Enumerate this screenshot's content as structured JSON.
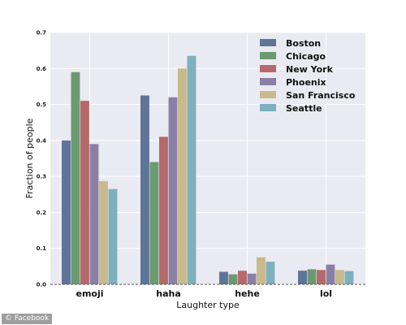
{
  "chart_data": {
    "type": "bar",
    "title": "",
    "xlabel": "Laughter type",
    "ylabel": "Fraction of people",
    "categories": [
      "emoji",
      "haha",
      "hehe",
      "lol"
    ],
    "ylim": [
      0,
      0.7
    ],
    "yticks": [
      "0.0",
      "0.1",
      "0.2",
      "0.3",
      "0.4",
      "0.5",
      "0.6",
      "0.7"
    ],
    "grid": true,
    "legend_position": "top-right",
    "series": [
      {
        "name": "Boston",
        "color": "#5f7499",
        "values": [
          0.4,
          0.525,
          0.035,
          0.038
        ]
      },
      {
        "name": "Chicago",
        "color": "#6b9a71",
        "values": [
          0.59,
          0.34,
          0.028,
          0.042
        ]
      },
      {
        "name": "New York",
        "color": "#b6696a",
        "values": [
          0.51,
          0.41,
          0.038,
          0.04
        ]
      },
      {
        "name": "Phoenix",
        "color": "#8a80a6",
        "values": [
          0.39,
          0.52,
          0.03,
          0.055
        ]
      },
      {
        "name": "San Francisco",
        "color": "#c8ba8a",
        "values": [
          0.287,
          0.6,
          0.075,
          0.04
        ]
      },
      {
        "name": "Seattle",
        "color": "#7eb0bd",
        "values": [
          0.265,
          0.635,
          0.063,
          0.037
        ]
      }
    ]
  },
  "credit": "© Facebook",
  "colors": {
    "plot_background": "#eaeaf2",
    "grid": "#ffffff"
  }
}
